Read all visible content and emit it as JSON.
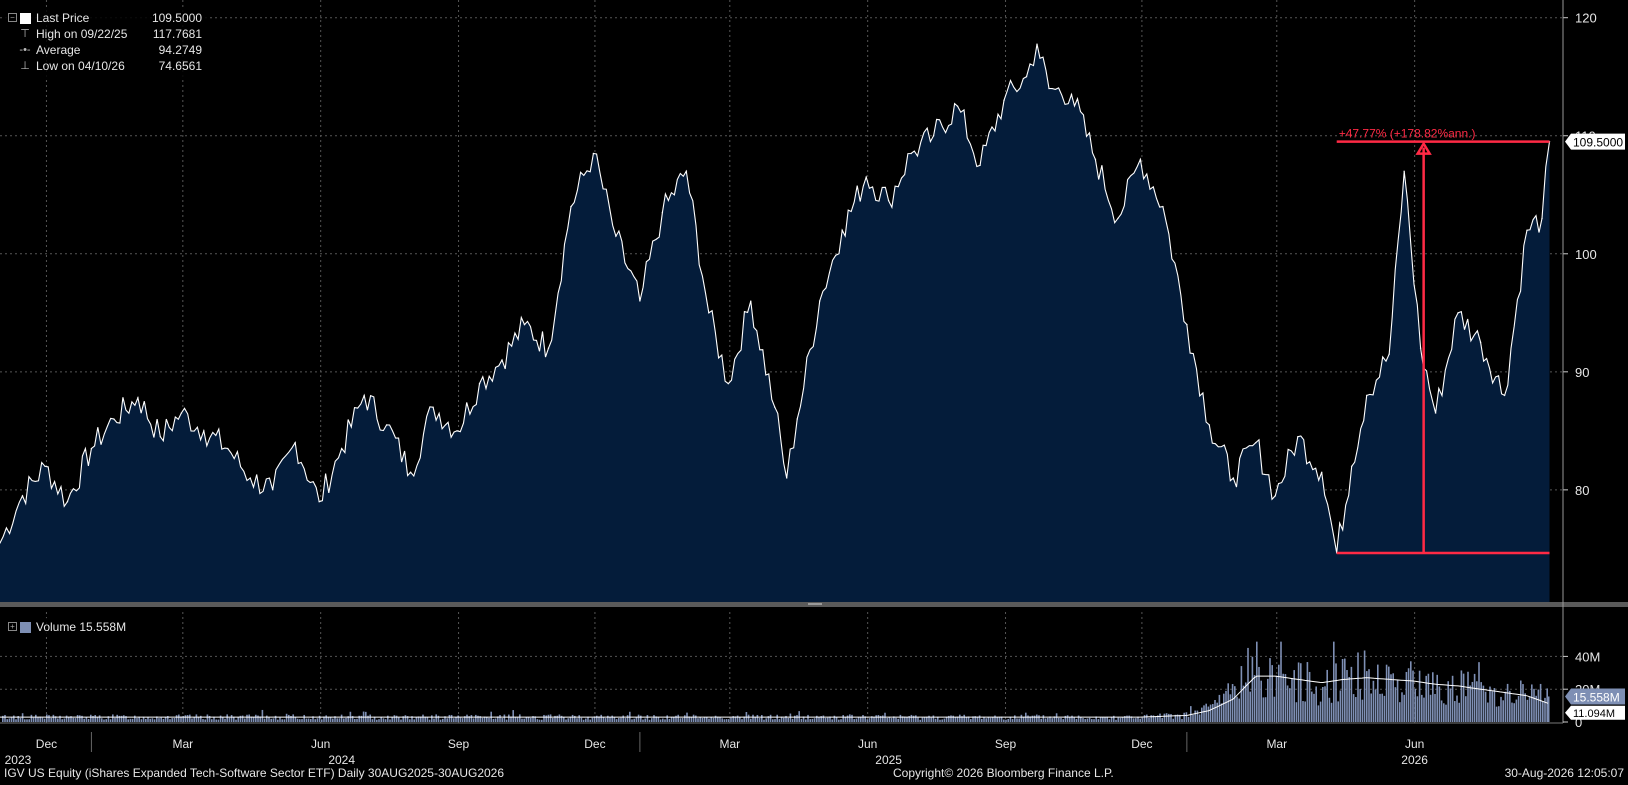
{
  "legend": {
    "last_price_label": "Last Price",
    "last_price_value": "109.5000",
    "high_label": "High on 09/22/25",
    "high_value": "117.7681",
    "average_label": "Average",
    "average_value": "94.2749",
    "low_label": "Low on 04/10/26",
    "low_value": "74.6561",
    "volume_label": "Volume 15.558M"
  },
  "colors": {
    "area_fill": "#041c3a",
    "price_line": "#ffffff",
    "volume_bars": "#7e8fb4",
    "annotation": "#ff2a45",
    "grid": "#555555",
    "separator": "#5a5a5a"
  },
  "annotation": {
    "text": "+47.77% (+178.82%ann.)",
    "low_value": 74.6561,
    "high_value": 109.5
  },
  "last_price_tag": "109.5000",
  "volume_tags": {
    "current": "15.558M",
    "ma": "11.094M"
  },
  "footer": {
    "left": "IGV US Equity (iShares Expanded Tech-Software Sector ETF) Daily 30AUG2025-30AUG2026",
    "center": "Copyright© 2026 Bloomberg Finance L.P.",
    "right": "30-Aug-2026 12:05:07"
  },
  "chart_data": [
    {
      "type": "area",
      "title": "Last Price",
      "y_ticks": [
        80,
        90,
        100,
        110,
        120
      ],
      "ylim": [
        70.5,
        121.5
      ],
      "x_ticks": [
        "Dec",
        "Mar",
        "Jun",
        "Sep",
        "Dec",
        "Mar",
        "Jun",
        "Sep",
        "Dec",
        "Mar",
        "Jun"
      ],
      "year_labels": [
        "2023",
        "2024",
        "2025",
        "2026"
      ],
      "grid": true,
      "series": [
        {
          "name": "Last Price",
          "x": [
            "2023-10-31",
            "2023-11-15",
            "2023-11-30",
            "2023-12-15",
            "2023-12-31",
            "2024-01-15",
            "2024-01-31",
            "2024-02-15",
            "2024-02-29",
            "2024-03-15",
            "2024-03-31",
            "2024-04-15",
            "2024-04-30",
            "2024-05-15",
            "2024-05-31",
            "2024-06-15",
            "2024-06-30",
            "2024-07-15",
            "2024-07-31",
            "2024-08-15",
            "2024-08-31",
            "2024-09-15",
            "2024-09-30",
            "2024-10-15",
            "2024-10-31",
            "2024-11-15",
            "2024-11-30",
            "2024-12-15",
            "2024-12-31",
            "2025-01-15",
            "2025-01-31",
            "2025-02-15",
            "2025-02-28",
            "2025-03-15",
            "2025-03-31",
            "2025-04-08",
            "2025-04-15",
            "2025-04-30",
            "2025-05-15",
            "2025-05-31",
            "2025-06-15",
            "2025-06-30",
            "2025-07-15",
            "2025-07-31",
            "2025-08-15",
            "2025-08-31",
            "2025-09-15",
            "2025-09-22",
            "2025-09-30",
            "2025-10-15",
            "2025-10-31",
            "2025-11-15",
            "2025-11-30",
            "2025-12-15",
            "2025-12-31",
            "2026-01-15",
            "2026-01-31",
            "2026-02-15",
            "2026-02-28",
            "2026-03-15",
            "2026-03-31",
            "2026-04-10",
            "2026-04-20",
            "2026-04-30",
            "2026-05-15",
            "2026-05-25",
            "2026-06-05",
            "2026-06-15",
            "2026-06-30",
            "2026-07-15",
            "2026-07-31",
            "2026-08-15",
            "2026-08-25",
            "2026-08-30"
          ],
          "values": [
            75.5,
            79.5,
            82.0,
            79.0,
            83.5,
            86.0,
            87.8,
            84.5,
            86.5,
            85.0,
            83.5,
            81.0,
            80.0,
            84.0,
            79.0,
            83.5,
            88.0,
            85.5,
            81.5,
            87.0,
            85.0,
            89.0,
            91.0,
            94.0,
            92.0,
            104.0,
            108.5,
            101.5,
            96.0,
            103.5,
            107.0,
            95.0,
            89.0,
            96.0,
            87.0,
            81.0,
            86.0,
            96.0,
            102.0,
            106.5,
            104.5,
            108.5,
            110.0,
            112.5,
            107.5,
            113.0,
            115.0,
            117.7681,
            114.0,
            113.5,
            108.0,
            103.0,
            108.0,
            104.0,
            94.0,
            85.5,
            81.0,
            84.0,
            79.5,
            84.5,
            81.5,
            74.6561,
            82.0,
            88.0,
            91.5,
            107.0,
            92.0,
            86.5,
            95.0,
            92.5,
            88.0,
            102.0,
            103.0,
            109.5
          ]
        }
      ]
    },
    {
      "type": "bar",
      "title": "Volume",
      "y_ticks": [
        "0",
        "20M",
        "40M"
      ],
      "ylim": [
        0,
        50
      ],
      "series": [
        {
          "name": "Volume",
          "x": [
            "2023-10-31",
            "2025-11-30",
            "2025-12-31",
            "2026-01-15",
            "2026-01-31",
            "2026-02-15",
            "2026-02-28",
            "2026-03-15",
            "2026-03-31",
            "2026-04-15",
            "2026-04-30",
            "2026-05-15",
            "2026-05-31",
            "2026-06-15",
            "2026-06-30",
            "2026-07-15",
            "2026-07-31",
            "2026-08-15",
            "2026-08-30"
          ],
          "values": [
            3,
            3,
            4,
            9,
            20,
            35,
            28,
            25,
            22,
            30,
            28,
            26,
            24,
            22,
            21,
            20,
            18,
            17,
            15.558
          ]
        },
        {
          "name": "Volume MA",
          "x": [
            "2023-10-31",
            "2025-11-30",
            "2025-12-31",
            "2026-01-15",
            "2026-01-31",
            "2026-02-15",
            "2026-02-28",
            "2026-03-15",
            "2026-03-31",
            "2026-04-15",
            "2026-04-30",
            "2026-05-15",
            "2026-05-31",
            "2026-06-15",
            "2026-06-30",
            "2026-07-15",
            "2026-07-31",
            "2026-08-15",
            "2026-08-30"
          ],
          "values": [
            3,
            3,
            4,
            7,
            14,
            28,
            28,
            26,
            24,
            26,
            27,
            26,
            25,
            23,
            22,
            20,
            18,
            16,
            11.094
          ]
        }
      ]
    }
  ]
}
